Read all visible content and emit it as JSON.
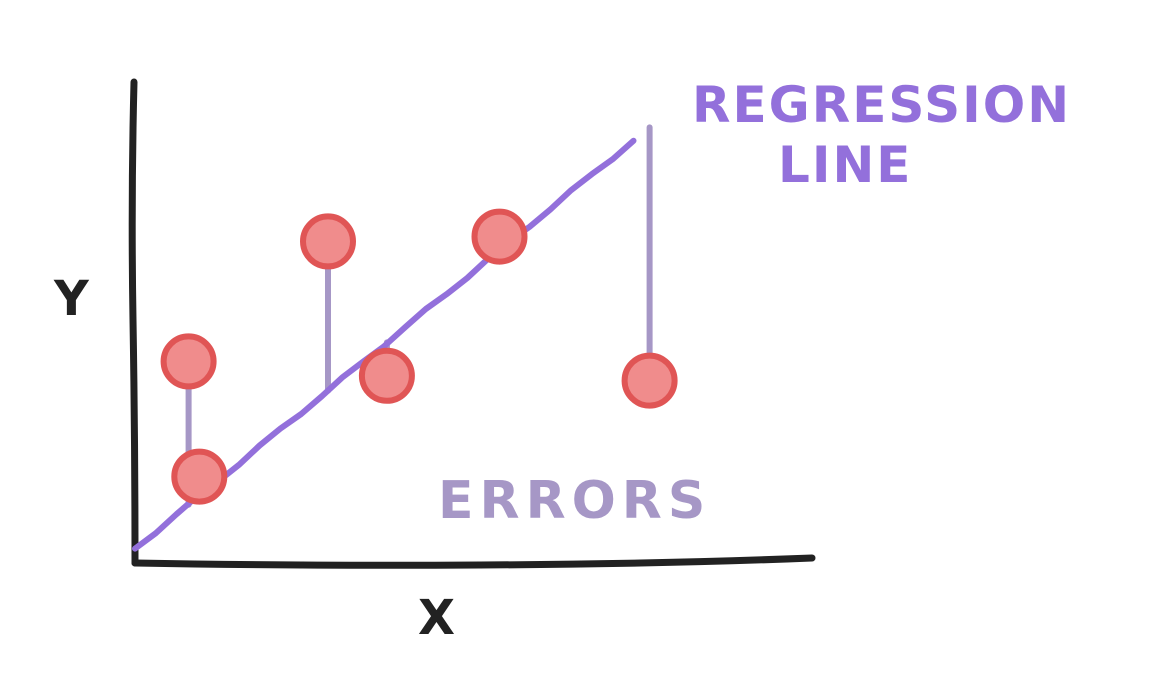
{
  "labels": {
    "y_axis": "Y",
    "x_axis": "X",
    "regression_line_1": "REGRESSION",
    "regression_line_2": "LINE",
    "errors": "ERRORS"
  },
  "colors": {
    "axis": "#222222",
    "regression": "#9370db",
    "error": "#a697c6",
    "point_fill": "#f08c8c",
    "point_stroke": "#e05555"
  },
  "chart_data": {
    "type": "scatter",
    "title": "",
    "xlabel": "X",
    "ylabel": "Y",
    "regression_line": {
      "start": [
        0.0,
        0.3
      ],
      "end": [
        9.3,
        8.8
      ]
    },
    "points": [
      {
        "x": 1.0,
        "y": 4.2
      },
      {
        "x": 1.2,
        "y": 1.8
      },
      {
        "x": 3.6,
        "y": 6.7
      },
      {
        "x": 4.7,
        "y": 3.9
      },
      {
        "x": 6.8,
        "y": 6.8
      },
      {
        "x": 9.6,
        "y": 3.8
      }
    ],
    "xlim": [
      0,
      12.6
    ],
    "ylim": [
      0,
      9.7
    ],
    "annotations": [
      "REGRESSION LINE",
      "ERRORS"
    ]
  }
}
